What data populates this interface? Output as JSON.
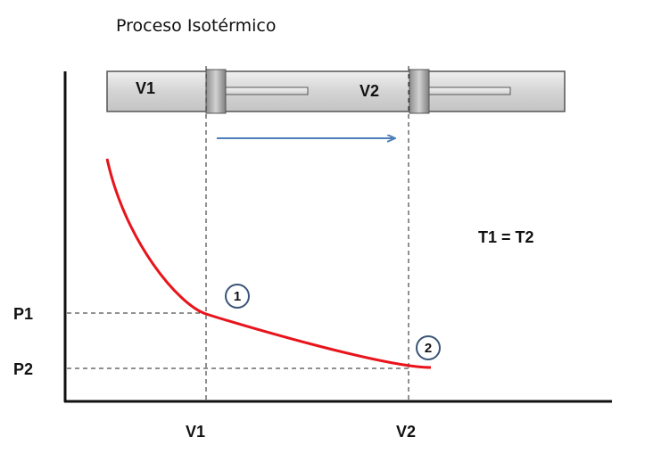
{
  "title": "Proceso Isotérmico",
  "cylinder": {
    "volume_left_label": "V1",
    "volume_right_label": "V2"
  },
  "axes": {
    "x_ticks": [
      "V1",
      "V2"
    ],
    "y_ticks": [
      "P1",
      "P2"
    ]
  },
  "condition": "T1 = T2",
  "points": [
    "1",
    "2"
  ],
  "colors": {
    "curve": "#e8141b",
    "arrow": "#4f7fb8",
    "point_circle": "#3a5578",
    "cylinder_fill": "#d8d8d8"
  }
}
